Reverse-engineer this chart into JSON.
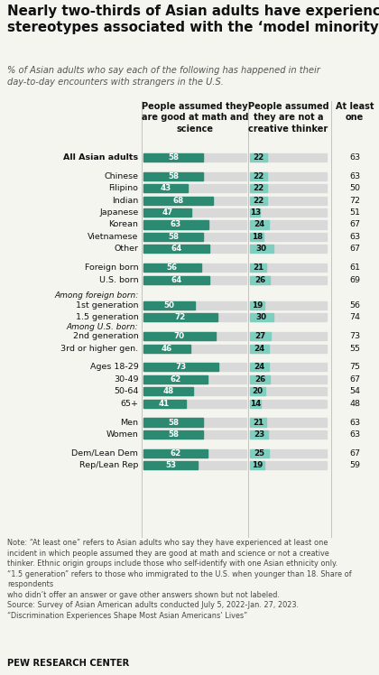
{
  "title": "Nearly two-thirds of Asian adults have experienced\nstereotypes associated with the ‘model minority’ label",
  "subtitle": "% of Asian adults who say each of the following has happened in their\nday-to-day encounters with strangers in the U.S.",
  "col1_header": "People assumed they\nare good at math and\nscience",
  "col2_header": "People assumed\nthey are not a\ncreative thinker",
  "col3_header": "At least\none",
  "note": "Note: “At least one” refers to Asian adults who say they have experienced at least one\nincident in which people assumed they are good at math and science or not a creative\nthinker. Ethnic origin groups include those who self-identify with one Asian ethnicity only.\n“1.5 generation” refers to those who immigrated to the U.S. when younger than 18. Share of\nrespondents\nwho didn’t offer an answer or gave other answers shown but not labeled.\nSource: Survey of Asian American adults conducted July 5, 2022-Jan. 27, 2023.\n“Discrimination Experiences Shape Most Asian Americans’ Lives”",
  "footer": "PEW RESEARCH CENTER",
  "rows": [
    {
      "label": "All Asian adults",
      "val1": 58,
      "val2": 22,
      "val3": 63,
      "bold": true,
      "italic": false,
      "gap_after": true,
      "indent": false,
      "header_row": false
    },
    {
      "label": "Chinese",
      "val1": 58,
      "val2": 22,
      "val3": 63,
      "bold": false,
      "italic": false,
      "gap_after": false,
      "indent": false,
      "header_row": false
    },
    {
      "label": "Filipino",
      "val1": 43,
      "val2": 22,
      "val3": 50,
      "bold": false,
      "italic": false,
      "gap_after": false,
      "indent": false,
      "header_row": false
    },
    {
      "label": "Indian",
      "val1": 68,
      "val2": 22,
      "val3": 72,
      "bold": false,
      "italic": false,
      "gap_after": false,
      "indent": false,
      "header_row": false
    },
    {
      "label": "Japanese",
      "val1": 47,
      "val2": 13,
      "val3": 51,
      "bold": false,
      "italic": false,
      "gap_after": false,
      "indent": false,
      "header_row": false
    },
    {
      "label": "Korean",
      "val1": 63,
      "val2": 24,
      "val3": 67,
      "bold": false,
      "italic": false,
      "gap_after": false,
      "indent": false,
      "header_row": false
    },
    {
      "label": "Vietnamese",
      "val1": 58,
      "val2": 18,
      "val3": 63,
      "bold": false,
      "italic": false,
      "gap_after": false,
      "indent": false,
      "header_row": false
    },
    {
      "label": "Other",
      "val1": 64,
      "val2": 30,
      "val3": 67,
      "bold": false,
      "italic": false,
      "gap_after": true,
      "indent": false,
      "header_row": false
    },
    {
      "label": "Foreign born",
      "val1": 56,
      "val2": 21,
      "val3": 61,
      "bold": false,
      "italic": false,
      "gap_after": false,
      "indent": false,
      "header_row": false
    },
    {
      "label": "U.S. born",
      "val1": 64,
      "val2": 26,
      "val3": 69,
      "bold": false,
      "italic": false,
      "gap_after": true,
      "indent": false,
      "header_row": false
    },
    {
      "label": "Among foreign born:",
      "val1": null,
      "val2": null,
      "val3": null,
      "bold": false,
      "italic": true,
      "gap_after": false,
      "indent": false,
      "header_row": true
    },
    {
      "label": "1st generation",
      "val1": 50,
      "val2": 19,
      "val3": 56,
      "bold": false,
      "italic": false,
      "gap_after": false,
      "indent": true,
      "header_row": false
    },
    {
      "label": "1.5 generation",
      "val1": 72,
      "val2": 30,
      "val3": 74,
      "bold": false,
      "italic": false,
      "gap_after": false,
      "indent": true,
      "header_row": false
    },
    {
      "label": "Among U.S. born:",
      "val1": null,
      "val2": null,
      "val3": null,
      "bold": false,
      "italic": true,
      "gap_after": false,
      "indent": false,
      "header_row": true
    },
    {
      "label": "2nd generation",
      "val1": 70,
      "val2": 27,
      "val3": 73,
      "bold": false,
      "italic": false,
      "gap_after": false,
      "indent": true,
      "header_row": false
    },
    {
      "label": "3rd or higher gen.",
      "val1": 46,
      "val2": 24,
      "val3": 55,
      "bold": false,
      "italic": false,
      "gap_after": true,
      "indent": true,
      "header_row": false
    },
    {
      "label": "Ages 18-29",
      "val1": 73,
      "val2": 24,
      "val3": 75,
      "bold": false,
      "italic": false,
      "gap_after": false,
      "indent": false,
      "header_row": false
    },
    {
      "label": "30-49",
      "val1": 62,
      "val2": 26,
      "val3": 67,
      "bold": false,
      "italic": false,
      "gap_after": false,
      "indent": false,
      "header_row": false
    },
    {
      "label": "50-64",
      "val1": 48,
      "val2": 20,
      "val3": 54,
      "bold": false,
      "italic": false,
      "gap_after": false,
      "indent": false,
      "header_row": false
    },
    {
      "label": "65+",
      "val1": 41,
      "val2": 14,
      "val3": 48,
      "bold": false,
      "italic": false,
      "gap_after": true,
      "indent": false,
      "header_row": false
    },
    {
      "label": "Men",
      "val1": 58,
      "val2": 21,
      "val3": 63,
      "bold": false,
      "italic": false,
      "gap_after": false,
      "indent": false,
      "header_row": false
    },
    {
      "label": "Women",
      "val1": 58,
      "val2": 23,
      "val3": 63,
      "bold": false,
      "italic": false,
      "gap_after": true,
      "indent": false,
      "header_row": false
    },
    {
      "label": "Dem/Lean Dem",
      "val1": 62,
      "val2": 25,
      "val3": 67,
      "bold": false,
      "italic": false,
      "gap_after": false,
      "indent": false,
      "header_row": false
    },
    {
      "label": "Rep/Lean Rep",
      "val1": 53,
      "val2": 19,
      "val3": 59,
      "bold": false,
      "italic": false,
      "gap_after": false,
      "indent": false,
      "header_row": false
    }
  ],
  "color_bar1": "#2d8a72",
  "color_bar2": "#7ecfc0",
  "color_bg_bar": "#d9d9d9",
  "bg_color": "#f5f5f0"
}
